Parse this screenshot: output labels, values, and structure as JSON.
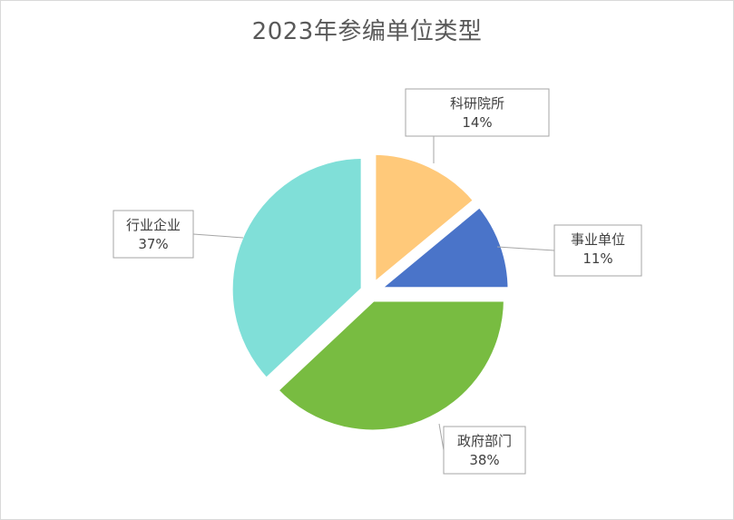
{
  "chart_data": {
    "type": "pie",
    "title": "2023年参编单位类型",
    "categories": [
      "科研院所",
      "事业单位",
      "政府部门",
      "行业企业"
    ],
    "values": [
      14,
      11,
      38,
      37
    ],
    "labels": [
      "14%",
      "11%",
      "38%",
      "37%"
    ],
    "colors": [
      "#FFC97A",
      "#4A74C9",
      "#78BC41",
      "#80DFD8"
    ],
    "exploded": true,
    "legend": "none"
  }
}
